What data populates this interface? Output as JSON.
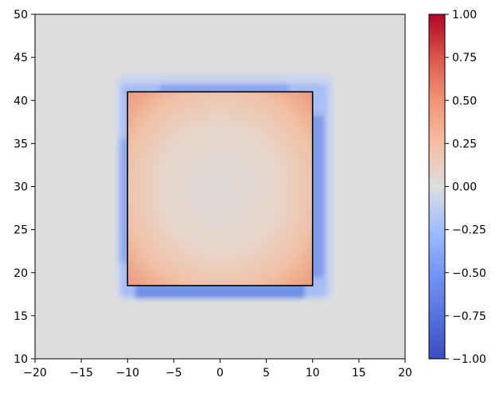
{
  "chart_data": {
    "type": "heatmap",
    "title": "",
    "xlabel": "",
    "ylabel": "",
    "xlim": [
      -20,
      20
    ],
    "ylim": [
      10,
      50
    ],
    "x_ticks": [
      "−20",
      "−15",
      "−10",
      "−5",
      "0",
      "5",
      "10",
      "15",
      "20"
    ],
    "x_tick_values": [
      -20,
      -15,
      -10,
      -5,
      0,
      5,
      10,
      15,
      20
    ],
    "y_ticks": [
      "10",
      "15",
      "20",
      "25",
      "30",
      "35",
      "40",
      "45",
      "50"
    ],
    "y_tick_values": [
      10,
      15,
      20,
      25,
      30,
      35,
      40,
      45,
      50
    ],
    "colormap": "coolwarm",
    "vmin": -1.0,
    "vmax": 1.0,
    "background_value": 0.0,
    "colorbar_ticks": [
      "1.00",
      "0.75",
      "0.50",
      "0.25",
      "0.00",
      "−0.25",
      "−0.50",
      "−0.75",
      "−1.00"
    ],
    "colorbar_tick_values": [
      1.0,
      0.75,
      0.5,
      0.25,
      0.0,
      -0.25,
      -0.5,
      -0.75,
      -1.0
    ],
    "rectangle": {
      "x0": -10,
      "x1": 10,
      "y0": 18.5,
      "y1": 41
    },
    "grid": false,
    "regions": [
      {
        "name": "interior",
        "value_center": 0.0,
        "value_edge": 0.55
      },
      {
        "name": "surrounding-halo",
        "value": -0.6,
        "extent": 2
      }
    ]
  },
  "colors": {
    "background": "#ffffff",
    "axes_face": "#dddddd",
    "axis_line": "#000000",
    "cmap_low": "#3b4cc0",
    "cmap_mid": "#dddddd",
    "cmap_high": "#b40426"
  }
}
